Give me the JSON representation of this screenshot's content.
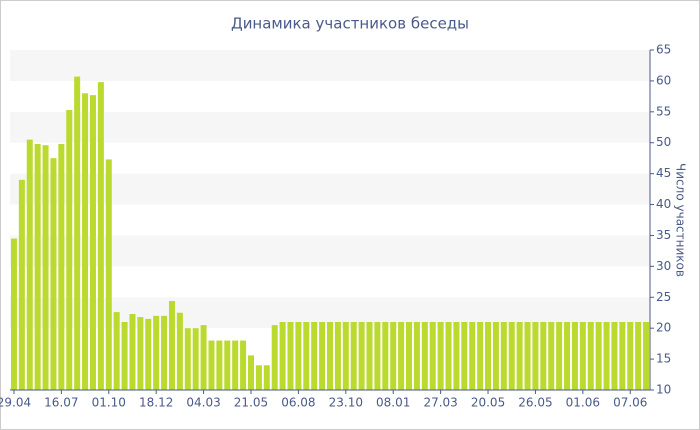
{
  "chart_data": {
    "type": "bar",
    "title": "Динамика участников беседы",
    "y_label": "Число участников",
    "categories": [
      "29.04",
      null,
      null,
      null,
      null,
      null,
      "16.07",
      null,
      null,
      null,
      null,
      null,
      "01.10",
      null,
      null,
      null,
      null,
      null,
      "18.12",
      null,
      null,
      null,
      null,
      null,
      "04.03",
      null,
      null,
      null,
      null,
      null,
      "21.05",
      null,
      null,
      null,
      null,
      null,
      "06.08",
      null,
      null,
      null,
      null,
      null,
      "23.10",
      null,
      null,
      null,
      null,
      null,
      "08.01",
      null,
      null,
      null,
      null,
      null,
      "27.03",
      null,
      null,
      null,
      null,
      null,
      "20.05",
      null,
      null,
      null,
      null,
      null,
      "26.05",
      null,
      null,
      null,
      null,
      null,
      "01.06",
      null,
      null,
      null,
      null,
      null,
      "07.06",
      null,
      null
    ],
    "values": [
      34.5,
      44,
      50.5,
      49.8,
      49.6,
      47.5,
      49.8,
      55.3,
      60.7,
      58,
      57.7,
      59.8,
      47.3,
      22.6,
      21,
      22.3,
      21.8,
      21.5,
      22,
      22,
      24.4,
      22.5,
      20,
      20,
      20.5,
      18,
      18,
      18,
      18,
      18,
      15.6,
      14,
      14,
      20.5,
      21,
      21,
      21,
      21,
      21,
      21,
      21,
      21,
      21,
      21,
      21,
      21,
      21,
      21,
      21,
      21,
      21,
      21,
      21,
      21,
      21,
      21,
      21,
      21,
      21,
      21,
      21,
      21,
      21,
      21,
      21,
      21,
      21,
      21,
      21,
      21,
      21,
      21,
      21,
      21,
      21,
      21,
      21,
      21,
      21,
      21,
      21
    ],
    "color": "#bada2f",
    "ylim": [
      10,
      65
    ],
    "yticks": [
      10,
      15,
      20,
      25,
      30,
      35,
      40,
      45,
      50,
      55,
      60,
      65
    ],
    "y_axis_side": "right",
    "grid_bands": true
  }
}
